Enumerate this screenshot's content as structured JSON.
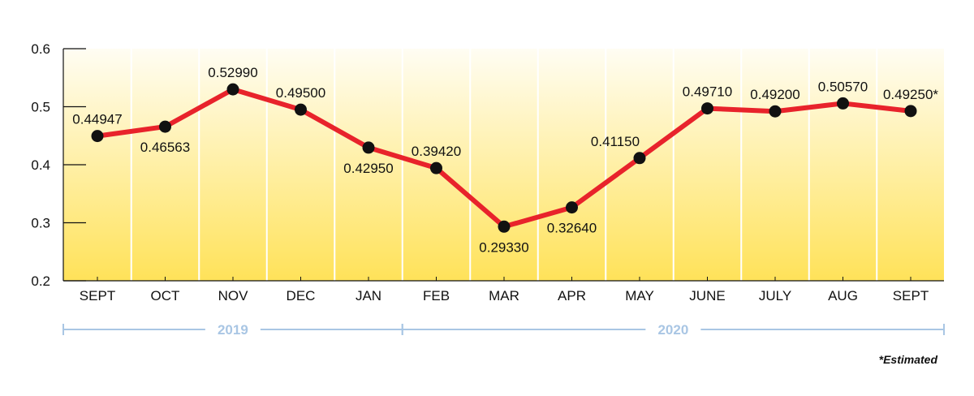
{
  "chart_data": {
    "type": "line",
    "categories": [
      "SEPT",
      "OCT",
      "NOV",
      "DEC",
      "JAN",
      "FEB",
      "MAR",
      "APR",
      "MAY",
      "JUNE",
      "JULY",
      "AUG",
      "SEPT"
    ],
    "value_labels": [
      "0.44947",
      "0.46563",
      "0.52990",
      "0.49500",
      "0.42950",
      "0.39420",
      "0.29330",
      "0.32640",
      "0.41150",
      "0.49710",
      "0.49200",
      "0.50570",
      "0.49250*"
    ],
    "series": [
      {
        "values": [
          0.44947,
          0.46563,
          0.5299,
          0.495,
          0.4295,
          0.3942,
          0.2933,
          0.3264,
          0.4115,
          0.4971,
          0.492,
          0.5057,
          0.4925
        ]
      }
    ],
    "y_ticks": [
      "0.2",
      "0.3",
      "0.4",
      "0.5",
      "0.6"
    ],
    "ylim": [
      0.2,
      0.6
    ],
    "title": "",
    "xlabel": "",
    "ylabel": "",
    "years": [
      {
        "label": "2019",
        "from_index": 0,
        "to_index": 4
      },
      {
        "label": "2020",
        "from_index": 5,
        "to_index": 12
      }
    ],
    "footnote": "*Estimated",
    "grid": "vertical",
    "colors": {
      "line": "#e8232b",
      "marker": "#111111",
      "background_top": "#fffdf3",
      "background_bottom": "#ffe259",
      "grid": "#ffffff",
      "year_bracket": "#a9c6e4"
    }
  }
}
